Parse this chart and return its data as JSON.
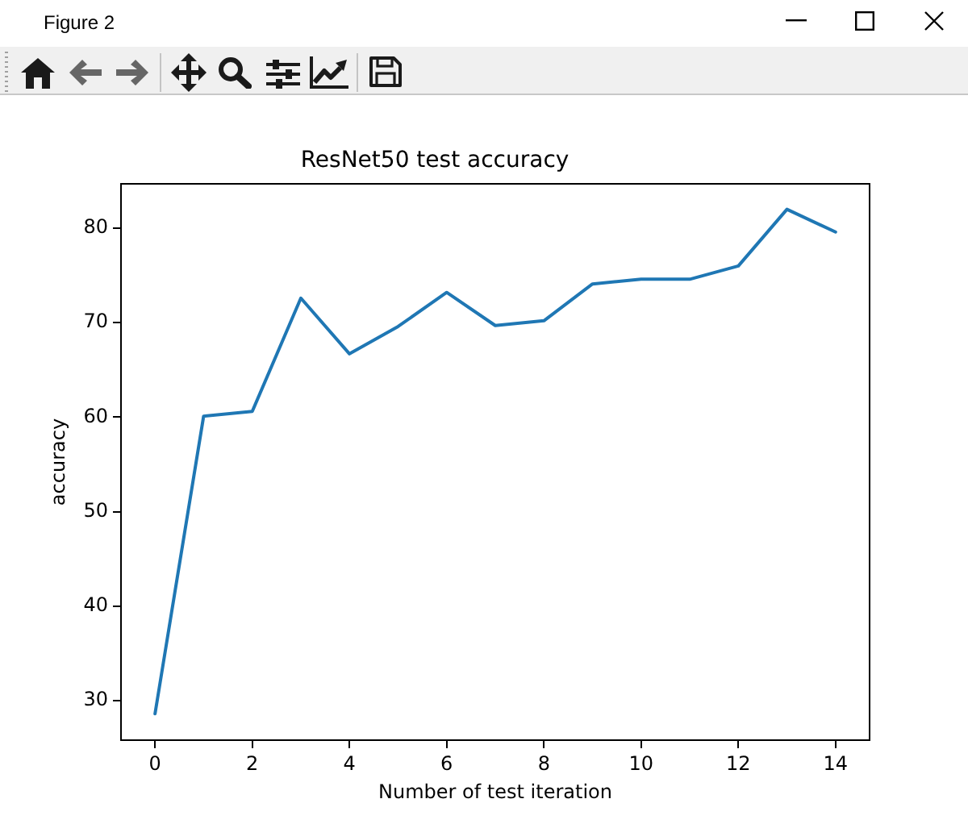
{
  "chart_data": {
    "type": "line",
    "title": "ResNet50 test accuracy",
    "xlabel": "Number of test iteration",
    "ylabel": "accuracy",
    "annotations": [
      "Figure 2"
    ],
    "x": [
      0,
      1,
      2,
      3,
      4,
      5,
      6,
      7,
      8,
      9,
      10,
      11,
      12,
      13,
      14
    ],
    "series": [
      {
        "color": "#1f77b4",
        "values": [
          28.6,
          60.1,
          60.6,
          72.6,
          66.7,
          69.6,
          73.2,
          69.7,
          70.2,
          74.1,
          74.6,
          74.6,
          76.0,
          82.0,
          79.6
        ]
      }
    ],
    "xlim": [
      -0.7,
      14.7
    ],
    "ylim": [
      25.8,
      84.7
    ],
    "xticks": [
      0,
      2,
      4,
      6,
      8,
      10,
      12,
      14
    ],
    "yticks": [
      30,
      40,
      50,
      60,
      70,
      80
    ],
    "line_style": "solid"
  }
}
